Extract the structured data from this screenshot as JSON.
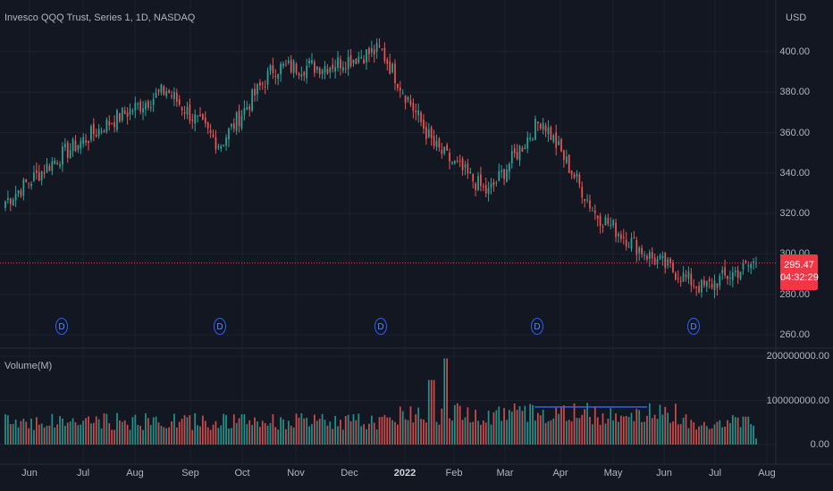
{
  "header": {
    "title": "Invesco QQQ Trust, Series 1, 1D, NASDAQ",
    "currency": "USD"
  },
  "volume_pane": {
    "title": "Volume(M)"
  },
  "current_price": {
    "value": "295.47",
    "countdown": "04:32:29"
  },
  "dividend_marker_label": "D",
  "colors": {
    "up": "#26a69a",
    "down": "#ef5350",
    "background": "#131722",
    "grid": "#1e222d",
    "marker": "#2962ff",
    "badge": "#f23645"
  },
  "chart_data": [
    {
      "type": "candlestick",
      "title": "Invesco QQQ Trust, Series 1, 1D, NASDAQ",
      "x_tick_labels": [
        "Jun",
        "Jul",
        "Aug",
        "Sep",
        "Oct",
        "Nov",
        "Dec",
        "2022",
        "Feb",
        "Mar",
        "Apr",
        "May",
        "Jun",
        "Jul",
        "Aug"
      ],
      "y_tick_labels": [
        "260.00",
        "280.00",
        "300.00",
        "320.00",
        "340.00",
        "360.00",
        "380.00",
        "400.00"
      ],
      "ylim": [
        255,
        412
      ],
      "price_path_points": [
        {
          "x": "Jun",
          "close": 326
        },
        {
          "x": "Jul",
          "close": 348
        },
        {
          "x": "Aug",
          "close": 366
        },
        {
          "x": "Sep",
          "close": 381
        },
        {
          "x": "Oct",
          "close": 354
        },
        {
          "x": "Nov",
          "close": 392
        },
        {
          "x": "Dec",
          "close": 393
        },
        {
          "x": "2022",
          "close": 401
        },
        {
          "x": "Feb",
          "close": 353
        },
        {
          "x": "Mar",
          "close": 330
        },
        {
          "x": "Apr",
          "close": 367
        },
        {
          "x": "May",
          "close": 320
        },
        {
          "x": "Jun",
          "close": 299
        },
        {
          "x": "Jul",
          "close": 283
        },
        {
          "x": "Aug",
          "close": 296
        }
      ],
      "last_price": 295.47,
      "dividend_markers": [
        "Jun",
        "Sep",
        "Dec",
        "Mar",
        "Jun"
      ],
      "grid": true
    },
    {
      "type": "bar",
      "title": "Volume(M)",
      "y_tick_labels": [
        "0.00",
        "100000000.00",
        "200000000.00"
      ],
      "ylim": [
        0,
        200000000
      ],
      "typical_volume": 55000000,
      "peak_volume": 195000000,
      "moving_average_level": 85000000,
      "grid": true
    }
  ]
}
